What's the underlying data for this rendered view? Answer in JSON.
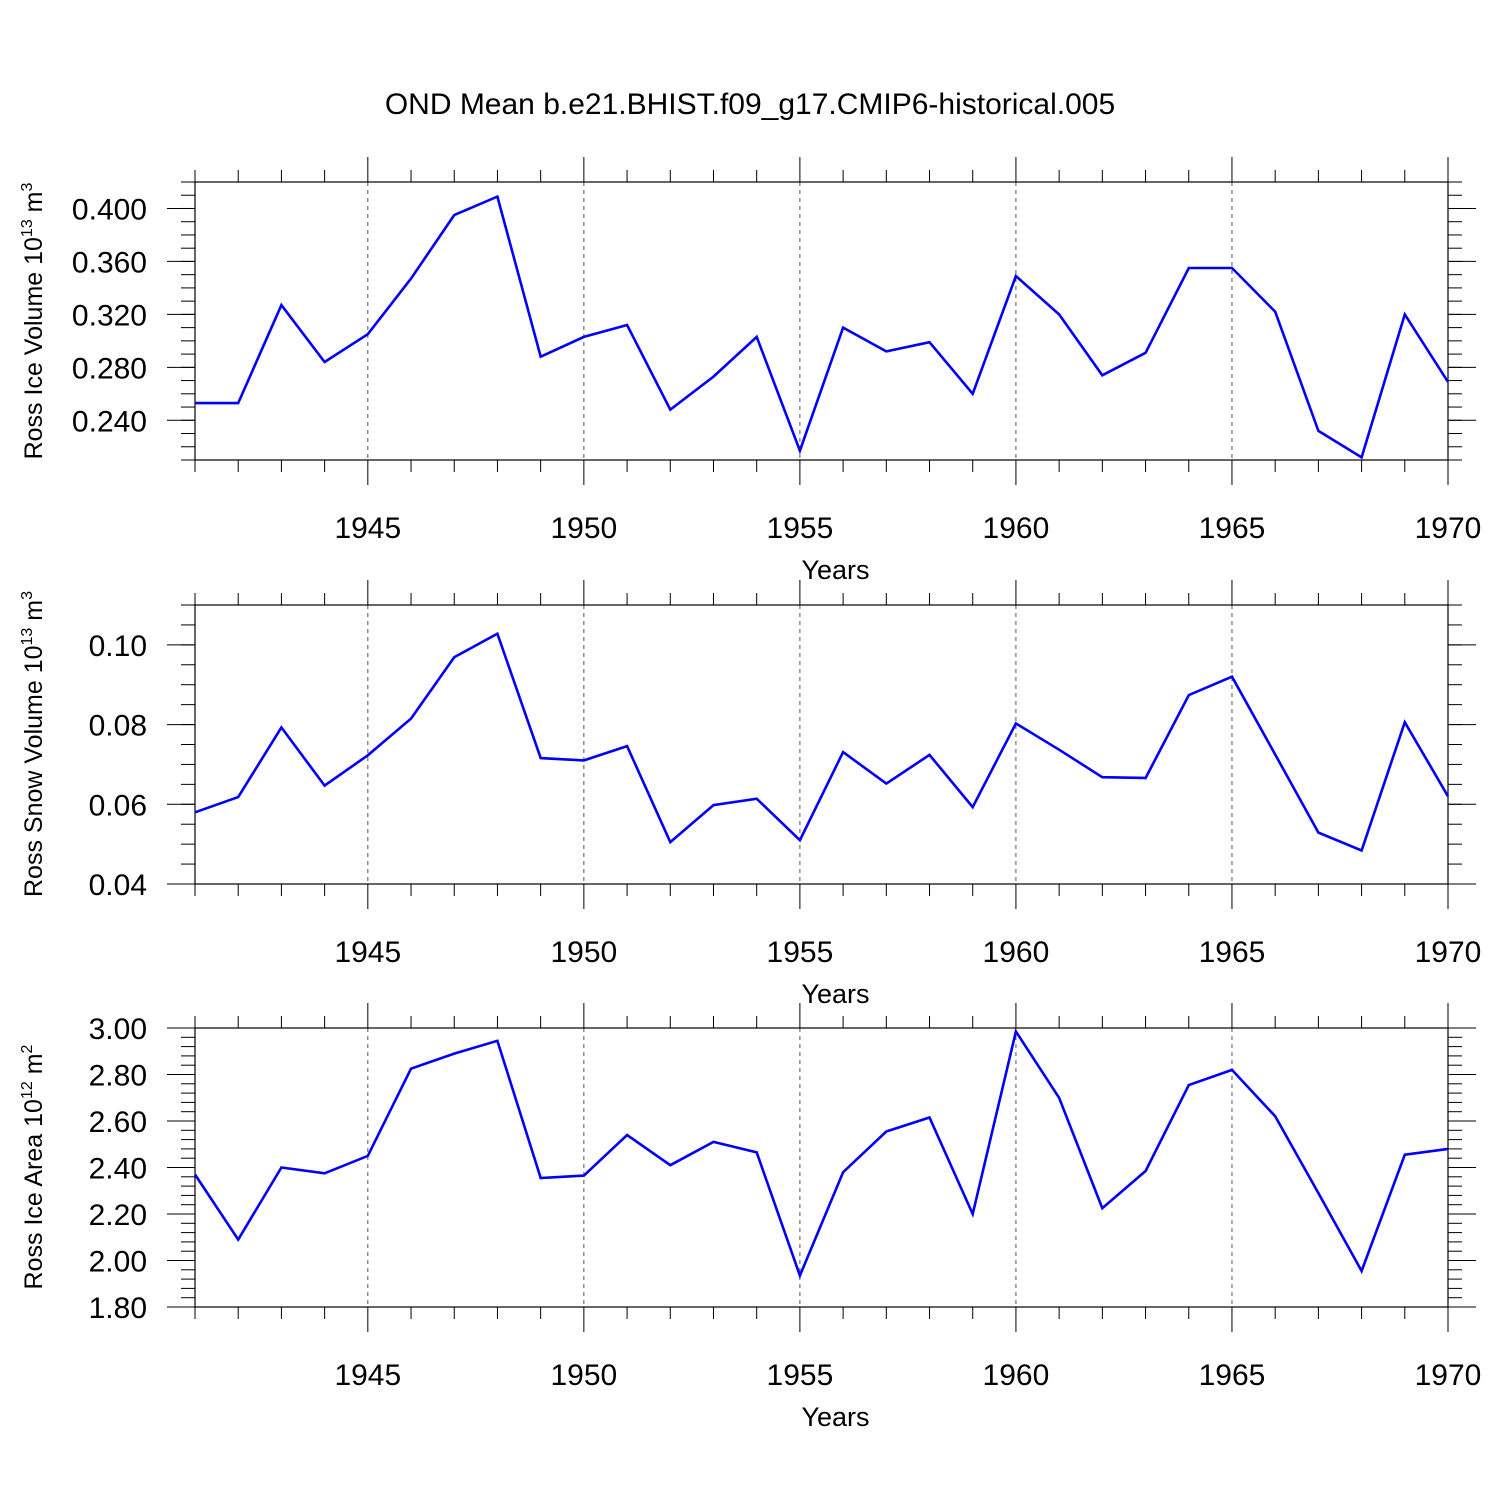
{
  "figure": {
    "title": "OND Mean b.e21.BHIST.f09_g17.CMIP6-historical.005"
  },
  "chart_data": [
    {
      "type": "line",
      "title": "",
      "xlabel": "Years",
      "ylabel": "Ross Ice Volume 10",
      "ylabel_exponent": "13",
      "ylabel_unit": "m",
      "ylabel_unit_exponent": "3",
      "xlim": [
        1941,
        1970
      ],
      "ylim": [
        0.21,
        0.42
      ],
      "x_ticks": [
        1945,
        1950,
        1955,
        1960,
        1965,
        1970
      ],
      "y_ticks": [
        0.24,
        0.28,
        0.32,
        0.36,
        0.4
      ],
      "y_tick_labels": [
        "0.240",
        "0.280",
        "0.320",
        "0.360",
        "0.400"
      ],
      "y_minor_step": 0.01,
      "grid": "vertical dashed at major x ticks",
      "color": "#0000ff",
      "x": [
        1941,
        1942,
        1943,
        1944,
        1945,
        1946,
        1947,
        1948,
        1949,
        1950,
        1951,
        1952,
        1953,
        1954,
        1955,
        1956,
        1957,
        1958,
        1959,
        1960,
        1961,
        1962,
        1963,
        1964,
        1965,
        1966,
        1967,
        1968,
        1969,
        1970
      ],
      "values": [
        0.253,
        0.253,
        0.327,
        0.284,
        0.305,
        0.347,
        0.395,
        0.409,
        0.288,
        0.303,
        0.312,
        0.248,
        0.273,
        0.303,
        0.217,
        0.31,
        0.292,
        0.299,
        0.26,
        0.349,
        0.32,
        0.274,
        0.291,
        0.355,
        0.355,
        0.322,
        0.232,
        0.212,
        0.32,
        0.269
      ]
    },
    {
      "type": "line",
      "title": "",
      "xlabel": "Years",
      "ylabel": "Ross Snow Volume 10",
      "ylabel_exponent": "13",
      "ylabel_unit": "m",
      "ylabel_unit_exponent": "3",
      "xlim": [
        1941,
        1970
      ],
      "ylim": [
        0.04,
        0.11
      ],
      "x_ticks": [
        1945,
        1950,
        1955,
        1960,
        1965,
        1970
      ],
      "y_ticks": [
        0.04,
        0.06,
        0.08,
        0.1
      ],
      "y_tick_labels": [
        "0.04",
        "0.06",
        "0.08",
        "0.10"
      ],
      "y_minor_step": 0.005,
      "grid": "vertical dashed at major x ticks",
      "color": "#0000ff",
      "x": [
        1941,
        1942,
        1943,
        1944,
        1945,
        1946,
        1947,
        1948,
        1949,
        1950,
        1951,
        1952,
        1953,
        1954,
        1955,
        1956,
        1957,
        1958,
        1959,
        1960,
        1961,
        1962,
        1963,
        1964,
        1965,
        1966,
        1967,
        1968,
        1969,
        1970
      ],
      "values": [
        0.058,
        0.0618,
        0.0793,
        0.0647,
        0.0723,
        0.0815,
        0.0969,
        0.1028,
        0.0716,
        0.071,
        0.0746,
        0.0505,
        0.0598,
        0.0614,
        0.051,
        0.0731,
        0.0652,
        0.0724,
        0.0593,
        0.0803,
        0.0737,
        0.0668,
        0.0666,
        0.0874,
        0.092,
        0.0725,
        0.0529,
        0.0484,
        0.0806,
        0.062
      ]
    },
    {
      "type": "line",
      "title": "",
      "xlabel": "Years",
      "ylabel": "Ross Ice Area 10",
      "ylabel_exponent": "12",
      "ylabel_unit": "m",
      "ylabel_unit_exponent": "2",
      "xlim": [
        1941,
        1970
      ],
      "ylim": [
        1.8,
        3.0
      ],
      "x_ticks": [
        1945,
        1950,
        1955,
        1960,
        1965,
        1970
      ],
      "y_ticks": [
        1.8,
        2.0,
        2.2,
        2.4,
        2.6,
        2.8,
        3.0
      ],
      "y_tick_labels": [
        "1.80",
        "2.00",
        "2.20",
        "2.40",
        "2.60",
        "2.80",
        "3.00"
      ],
      "y_minor_step": 0.04,
      "grid": "vertical dashed at major x ticks",
      "color": "#0000ff",
      "x": [
        1941,
        1942,
        1943,
        1944,
        1945,
        1946,
        1947,
        1948,
        1949,
        1950,
        1951,
        1952,
        1953,
        1954,
        1955,
        1956,
        1957,
        1958,
        1959,
        1960,
        1961,
        1962,
        1963,
        1964,
        1965,
        1966,
        1967,
        1968,
        1969,
        1970
      ],
      "values": [
        2.37,
        2.09,
        2.4,
        2.375,
        2.45,
        2.825,
        2.89,
        2.945,
        2.355,
        2.365,
        2.54,
        2.41,
        2.51,
        2.465,
        1.935,
        2.38,
        2.555,
        2.615,
        2.2,
        2.985,
        2.7,
        2.225,
        2.385,
        2.755,
        2.82,
        2.62,
        2.29,
        1.955,
        2.455,
        2.48
      ]
    }
  ]
}
